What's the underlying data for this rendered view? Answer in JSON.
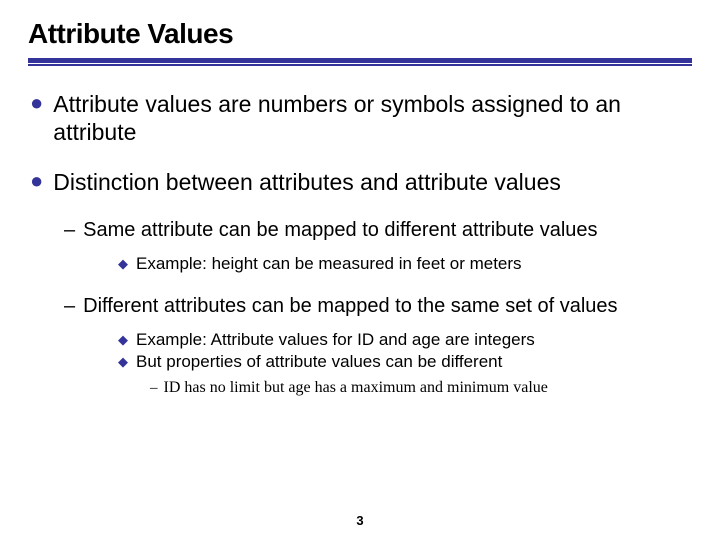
{
  "title": "Attribute Values",
  "colors": {
    "accent": "#333399",
    "text": "#000000",
    "background": "#ffffff"
  },
  "bullets": {
    "item1": "Attribute values are numbers or symbols assigned to an attribute",
    "item2": "Distinction between attributes and attribute values",
    "sub1": "Same attribute can be mapped to different attribute values",
    "sub1_ex": "Example: height can be measured in feet or meters",
    "sub2": "Different attributes can be mapped to the same set of values",
    "sub2_ex1": "Example: Attribute values for ID and age are integers",
    "sub2_ex2": "But properties of attribute values can be different",
    "sub2_ex2_detail": "ID has no limit but age has a maximum and minimum value"
  },
  "page_number": "3"
}
